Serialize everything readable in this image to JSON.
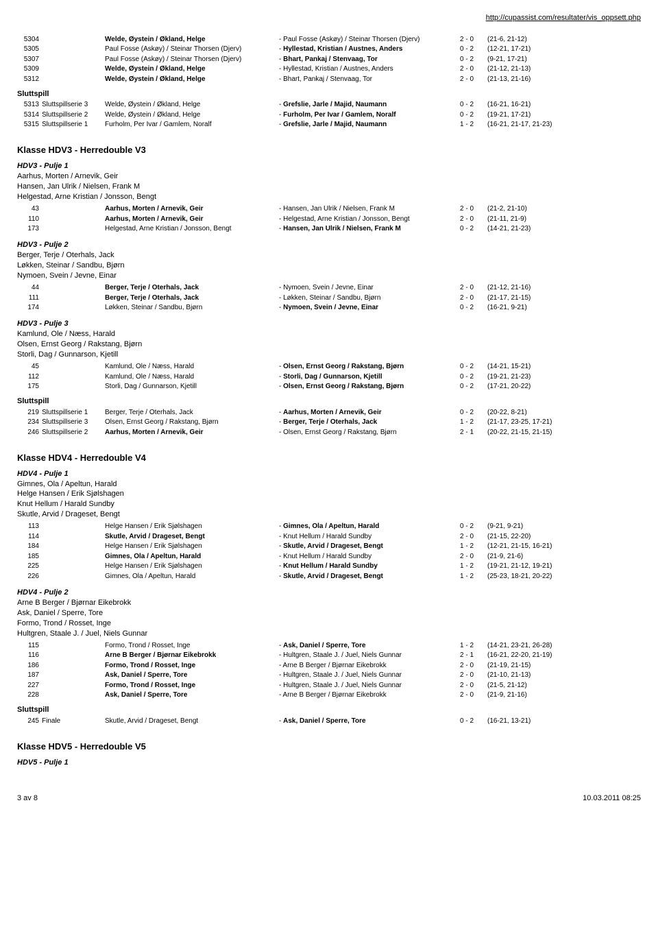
{
  "url": "http://cupassist.com/resultater/vis_oppsett.php",
  "footer_left": "3 av 8",
  "footer_right": "10.03.2011 08:25",
  "top_matches": [
    {
      "n": "5304",
      "s": "",
      "pl": "Welde, Øystein / Økland, Helge",
      "pb": true,
      "op": "- Paul Fosse (Askøy) / Steinar Thorsen (Djerv)",
      "ob": false,
      "sc": "2 - 0",
      "set": "(21-6, 21-12)"
    },
    {
      "n": "5305",
      "s": "",
      "pl": "Paul Fosse (Askøy) / Steinar Thorsen (Djerv)",
      "pb": false,
      "op": "- Hyllestad, Kristian / Austnes, Anders",
      "ob": true,
      "sc": "0 - 2",
      "set": "(12-21, 17-21)"
    },
    {
      "n": "5307",
      "s": "",
      "pl": "Paul Fosse (Askøy) / Steinar Thorsen (Djerv)",
      "pb": false,
      "op": "- Bhart, Pankaj / Stenvaag, Tor",
      "ob": true,
      "sc": "0 - 2",
      "set": "(9-21, 17-21)"
    },
    {
      "n": "5309",
      "s": "",
      "pl": "Welde, Øystein / Økland, Helge",
      "pb": true,
      "op": "- Hyllestad, Kristian / Austnes, Anders",
      "ob": false,
      "sc": "2 - 0",
      "set": "(21-12, 21-13)"
    },
    {
      "n": "5312",
      "s": "",
      "pl": "Welde, Øystein / Økland, Helge",
      "pb": true,
      "op": "- Bhart, Pankaj / Stenvaag, Tor",
      "ob": false,
      "sc": "2 - 0",
      "set": "(21-13, 21-16)"
    }
  ],
  "top_slutt": [
    {
      "n": "5313",
      "s": "Sluttspillserie 3",
      "pl": "Welde, Øystein / Økland, Helge",
      "pb": false,
      "op": "- Grefslie, Jarle / Majid, Naumann",
      "ob": true,
      "sc": "0 - 2",
      "set": "(16-21, 16-21)"
    },
    {
      "n": "5314",
      "s": "Sluttspillserie 2",
      "pl": "Welde, Øystein / Økland, Helge",
      "pb": false,
      "op": "- Furholm, Per Ivar / Gamlem, Noralf",
      "ob": true,
      "sc": "0 - 2",
      "set": "(19-21, 17-21)"
    },
    {
      "n": "5315",
      "s": "Sluttspillserie 1",
      "pl": "Furholm, Per Ivar / Gamlem, Noralf",
      "pb": false,
      "op": "- Grefslie, Jarle / Majid, Naumann",
      "ob": true,
      "sc": "1 - 2",
      "set": "(16-21, 21-17, 21-23)"
    }
  ],
  "hdv3_title": "Klasse HDV3 - Herredouble V3",
  "hdv3_p1_title": "HDV3 - Pulje 1",
  "hdv3_p1_players": [
    "Aarhus, Morten / Arnevik, Geir",
    "Hansen, Jan Ulrik / Nielsen, Frank M",
    "Helgestad, Arne Kristian / Jonsson, Bengt"
  ],
  "hdv3_p1_matches": [
    {
      "n": "43",
      "s": "",
      "pl": "Aarhus, Morten / Arnevik, Geir",
      "pb": true,
      "op": "- Hansen, Jan Ulrik / Nielsen, Frank M",
      "ob": false,
      "sc": "2 - 0",
      "set": "(21-2, 21-10)"
    },
    {
      "n": "110",
      "s": "",
      "pl": "Aarhus, Morten / Arnevik, Geir",
      "pb": true,
      "op": "- Helgestad, Arne Kristian / Jonsson, Bengt",
      "ob": false,
      "sc": "2 - 0",
      "set": "(21-11, 21-9)"
    },
    {
      "n": "173",
      "s": "",
      "pl": "Helgestad, Arne Kristian / Jonsson, Bengt",
      "pb": false,
      "op": "- Hansen, Jan Ulrik / Nielsen, Frank M",
      "ob": true,
      "sc": "0 - 2",
      "set": "(14-21, 21-23)"
    }
  ],
  "hdv3_p2_title": "HDV3 - Pulje 2",
  "hdv3_p2_players": [
    "Berger, Terje / Oterhals, Jack",
    "Løkken, Steinar / Sandbu, Bjørn",
    "Nymoen, Svein / Jevne, Einar"
  ],
  "hdv3_p2_matches": [
    {
      "n": "44",
      "s": "",
      "pl": "Berger, Terje / Oterhals, Jack",
      "pb": true,
      "op": "- Nymoen, Svein / Jevne, Einar",
      "ob": false,
      "sc": "2 - 0",
      "set": "(21-12, 21-16)"
    },
    {
      "n": "111",
      "s": "",
      "pl": "Berger, Terje / Oterhals, Jack",
      "pb": true,
      "op": "- Løkken, Steinar / Sandbu, Bjørn",
      "ob": false,
      "sc": "2 - 0",
      "set": "(21-17, 21-15)"
    },
    {
      "n": "174",
      "s": "",
      "pl": "Løkken, Steinar / Sandbu, Bjørn",
      "pb": false,
      "op": "- Nymoen, Svein / Jevne, Einar",
      "ob": true,
      "sc": "0 - 2",
      "set": "(16-21, 9-21)"
    }
  ],
  "hdv3_p3_title": "HDV3 - Pulje 3",
  "hdv3_p3_players": [
    "Kamlund, Ole / Næss, Harald",
    "Olsen, Ernst Georg / Rakstang, Bjørn",
    "Storli, Dag / Gunnarson, Kjetill"
  ],
  "hdv3_p3_matches": [
    {
      "n": "45",
      "s": "",
      "pl": "Kamlund, Ole / Næss, Harald",
      "pb": false,
      "op": "- Olsen, Ernst Georg / Rakstang, Bjørn",
      "ob": true,
      "sc": "0 - 2",
      "set": "(14-21, 15-21)"
    },
    {
      "n": "112",
      "s": "",
      "pl": "Kamlund, Ole / Næss, Harald",
      "pb": false,
      "op": "- Storli, Dag / Gunnarson, Kjetill",
      "ob": true,
      "sc": "0 - 2",
      "set": "(19-21, 21-23)"
    },
    {
      "n": "175",
      "s": "",
      "pl": "Storli, Dag / Gunnarson, Kjetill",
      "pb": false,
      "op": "- Olsen, Ernst Georg / Rakstang, Bjørn",
      "ob": true,
      "sc": "0 - 2",
      "set": "(17-21, 20-22)"
    }
  ],
  "hdv3_slutt": [
    {
      "n": "219",
      "s": "Sluttspillserie 1",
      "pl": "Berger, Terje / Oterhals, Jack",
      "pb": false,
      "op": "- Aarhus, Morten / Arnevik, Geir",
      "ob": true,
      "sc": "0 - 2",
      "set": "(20-22, 8-21)"
    },
    {
      "n": "234",
      "s": "Sluttspillserie 3",
      "pl": "Olsen, Ernst Georg / Rakstang, Bjørn",
      "pb": false,
      "op": "- Berger, Terje / Oterhals, Jack",
      "ob": true,
      "sc": "1 - 2",
      "set": "(21-17, 23-25, 17-21)"
    },
    {
      "n": "246",
      "s": "Sluttspillserie 2",
      "pl": "Aarhus, Morten / Arnevik, Geir",
      "pb": true,
      "op": "- Olsen, Ernst Georg / Rakstang, Bjørn",
      "ob": false,
      "sc": "2 - 1",
      "set": "(20-22, 21-15, 21-15)"
    }
  ],
  "hdv4_title": "Klasse HDV4 - Herredouble V4",
  "hdv4_p1_title": "HDV4 - Pulje 1",
  "hdv4_p1_players": [
    "Gimnes, Ola / Apeltun, Harald",
    "Helge Hansen / Erik Sjølshagen",
    "Knut Hellum / Harald Sundby",
    "Skutle, Arvid / Drageset, Bengt"
  ],
  "hdv4_p1_matches": [
    {
      "n": "113",
      "s": "",
      "pl": "Helge Hansen / Erik Sjølshagen",
      "pb": false,
      "op": "- Gimnes, Ola / Apeltun, Harald",
      "ob": true,
      "sc": "0 - 2",
      "set": "(9-21, 9-21)"
    },
    {
      "n": "114",
      "s": "",
      "pl": "Skutle, Arvid / Drageset, Bengt",
      "pb": true,
      "op": "- Knut Hellum / Harald Sundby",
      "ob": false,
      "sc": "2 - 0",
      "set": "(21-15, 22-20)"
    },
    {
      "n": "184",
      "s": "",
      "pl": "Helge Hansen / Erik Sjølshagen",
      "pb": false,
      "op": "- Skutle, Arvid / Drageset, Bengt",
      "ob": true,
      "sc": "1 - 2",
      "set": "(12-21, 21-15, 16-21)"
    },
    {
      "n": "185",
      "s": "",
      "pl": "Gimnes, Ola / Apeltun, Harald",
      "pb": true,
      "op": "- Knut Hellum / Harald Sundby",
      "ob": false,
      "sc": "2 - 0",
      "set": "(21-9, 21-6)"
    },
    {
      "n": "225",
      "s": "",
      "pl": "Helge Hansen / Erik Sjølshagen",
      "pb": false,
      "op": "- Knut Hellum / Harald Sundby",
      "ob": true,
      "sc": "1 - 2",
      "set": "(19-21, 21-12, 19-21)"
    },
    {
      "n": "226",
      "s": "",
      "pl": "Gimnes, Ola / Apeltun, Harald",
      "pb": false,
      "op": "- Skutle, Arvid / Drageset, Bengt",
      "ob": true,
      "sc": "1 - 2",
      "set": "(25-23, 18-21, 20-22)"
    }
  ],
  "hdv4_p2_title": "HDV4 - Pulje 2",
  "hdv4_p2_players": [
    "Arne B Berger / Bjørnar Eikebrokk",
    "Ask, Daniel / Sperre, Tore",
    "Formo, Trond / Rosset, Inge",
    "Hultgren, Staale J. / Juel, Niels Gunnar"
  ],
  "hdv4_p2_matches": [
    {
      "n": "115",
      "s": "",
      "pl": "Formo, Trond / Rosset, Inge",
      "pb": false,
      "op": "- Ask, Daniel / Sperre, Tore",
      "ob": true,
      "sc": "1 - 2",
      "set": "(14-21, 23-21, 26-28)"
    },
    {
      "n": "116",
      "s": "",
      "pl": "Arne B Berger / Bjørnar Eikebrokk",
      "pb": true,
      "op": "- Hultgren, Staale J. / Juel, Niels Gunnar",
      "ob": false,
      "sc": "2 - 1",
      "set": "(16-21, 22-20, 21-19)"
    },
    {
      "n": "186",
      "s": "",
      "pl": "Formo, Trond / Rosset, Inge",
      "pb": true,
      "op": "- Arne B Berger / Bjørnar Eikebrokk",
      "ob": false,
      "sc": "2 - 0",
      "set": "(21-19, 21-15)"
    },
    {
      "n": "187",
      "s": "",
      "pl": "Ask, Daniel / Sperre, Tore",
      "pb": true,
      "op": "- Hultgren, Staale J. / Juel, Niels Gunnar",
      "ob": false,
      "sc": "2 - 0",
      "set": "(21-10, 21-13)"
    },
    {
      "n": "227",
      "s": "",
      "pl": "Formo, Trond / Rosset, Inge",
      "pb": true,
      "op": "- Hultgren, Staale J. / Juel, Niels Gunnar",
      "ob": false,
      "sc": "2 - 0",
      "set": "(21-5, 21-12)"
    },
    {
      "n": "228",
      "s": "",
      "pl": "Ask, Daniel / Sperre, Tore",
      "pb": true,
      "op": "- Arne B Berger / Bjørnar Eikebrokk",
      "ob": false,
      "sc": "2 - 0",
      "set": "(21-9, 21-16)"
    }
  ],
  "hdv4_slutt": [
    {
      "n": "245",
      "s": "Finale",
      "pl": "Skutle, Arvid / Drageset, Bengt",
      "pb": false,
      "op": "- Ask, Daniel / Sperre, Tore",
      "ob": true,
      "sc": "0 - 2",
      "set": "(16-21, 13-21)"
    }
  ],
  "hdv5_title": "Klasse HDV5 - Herredouble V5",
  "hdv5_p1_title": "HDV5 - Pulje 1",
  "slutt_label": "Sluttspill"
}
